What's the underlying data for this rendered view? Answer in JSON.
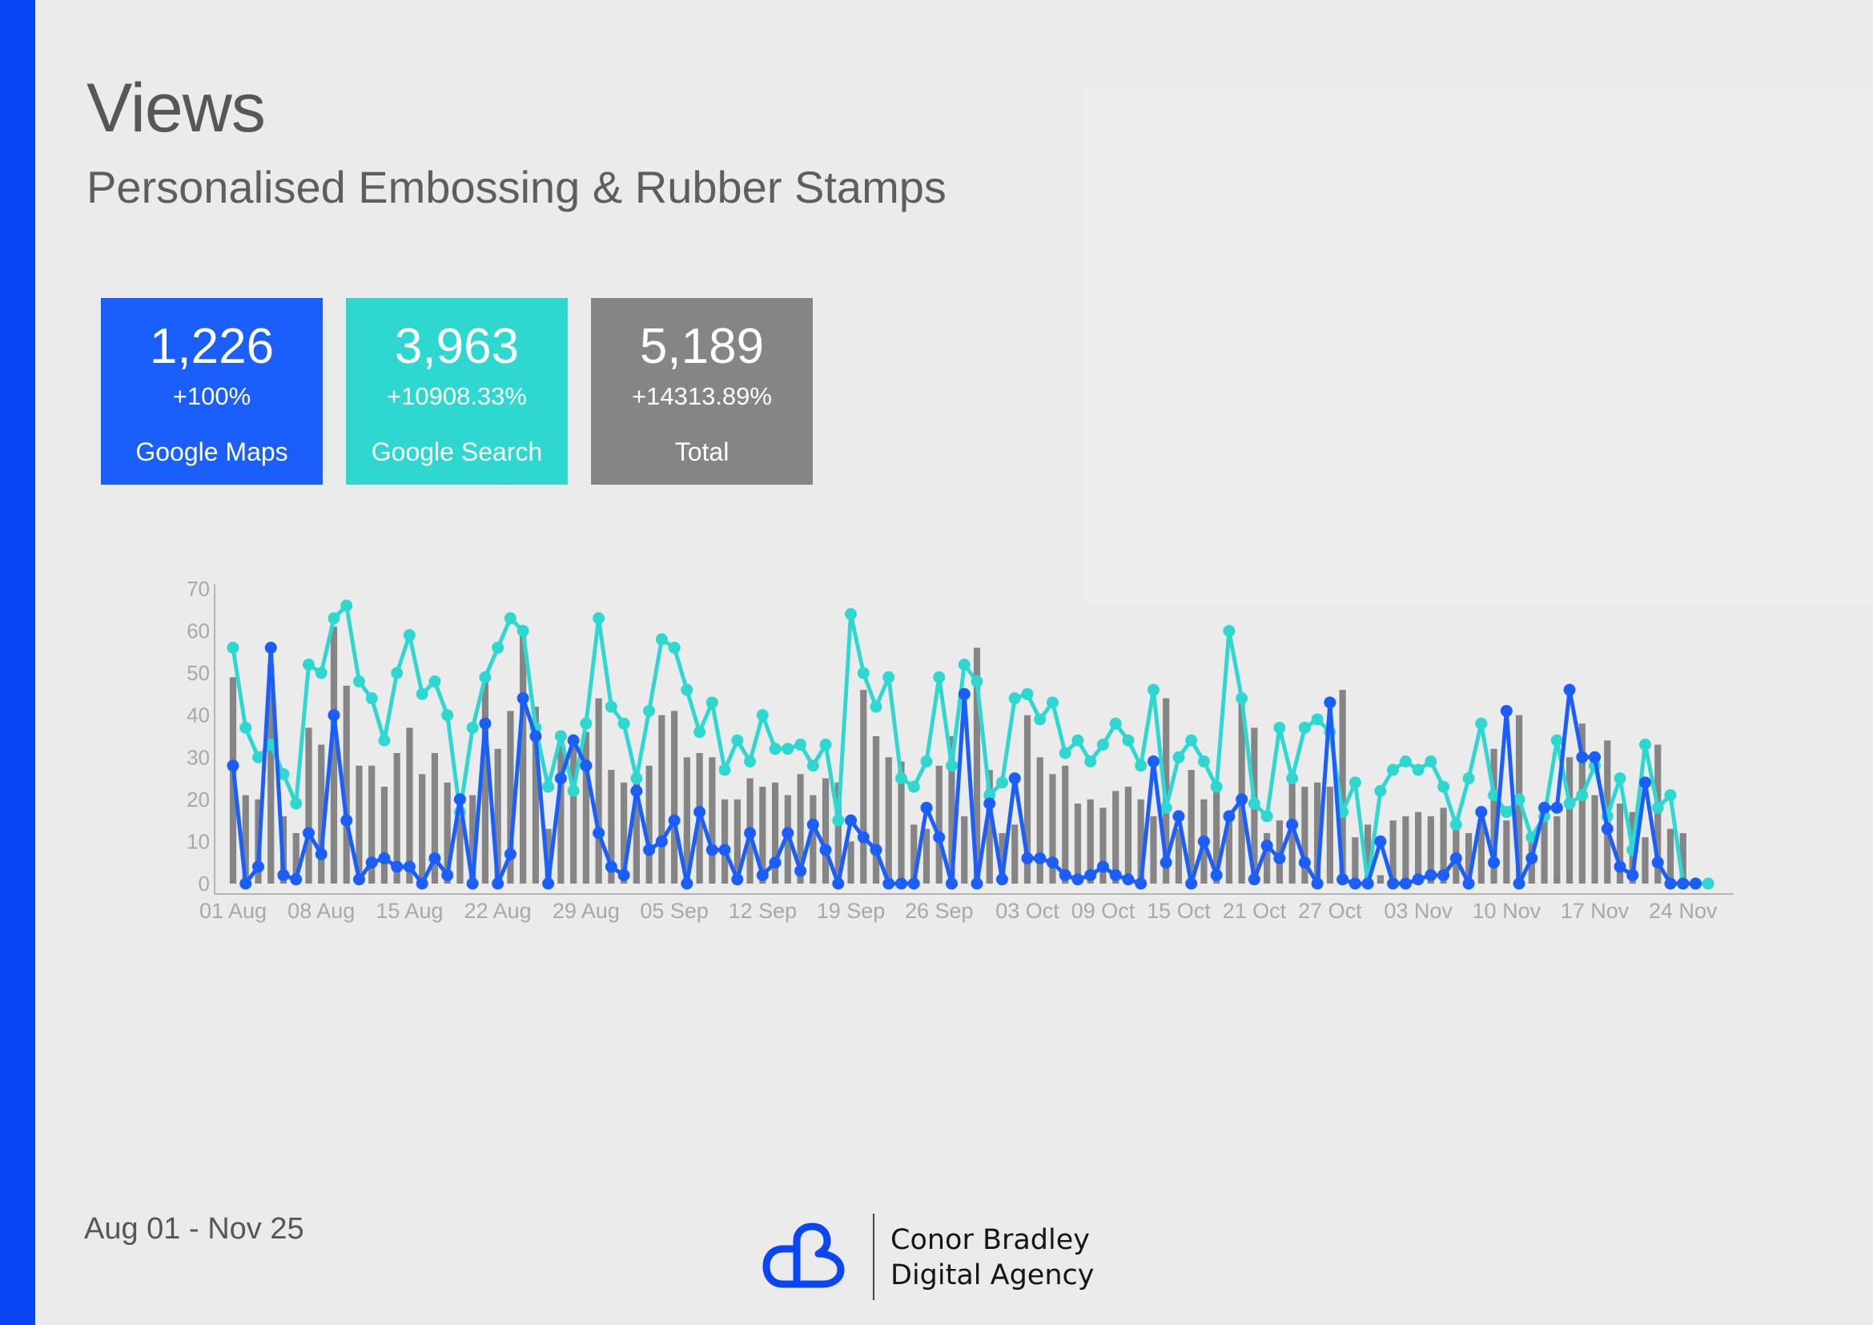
{
  "page": {
    "title": "Views",
    "subtitle": "Personalised Embossing & Rubber Stamps",
    "date_range": "Aug 01 - Nov 25"
  },
  "cards": [
    {
      "value": "1,226",
      "change": "+100%",
      "label": "Google Maps",
      "color": "#1a5efc"
    },
    {
      "value": "3,963",
      "change": "+10908.33%",
      "label": "Google Search",
      "color": "#2ed8d0"
    },
    {
      "value": "5,189",
      "change": "+14313.89%",
      "label": "Total",
      "color": "#858585"
    }
  ],
  "brand": {
    "line1": "Conor Bradley",
    "line2": "Digital Agency",
    "accent_color": "#0a46f5"
  },
  "chart_data": {
    "type": "bar",
    "ylim": [
      0,
      70
    ],
    "y_ticks": [
      "0",
      "10",
      "20",
      "30",
      "40",
      "50",
      "60",
      "70"
    ],
    "x_tick_labels": [
      "01 Aug",
      "08 Aug",
      "15 Aug",
      "22 Aug",
      "29 Aug",
      "05 Sep",
      "12 Sep",
      "19 Sep",
      "26 Sep",
      "03 Oct",
      "09 Oct",
      "15 Oct",
      "21 Oct",
      "27 Oct",
      "03 Nov",
      "10 Nov",
      "17 Nov",
      "24 Nov"
    ],
    "x_tick_index": [
      0,
      7,
      14,
      21,
      28,
      35,
      42,
      49,
      56,
      63,
      69,
      75,
      81,
      87,
      94,
      101,
      108,
      115
    ],
    "grid": false,
    "series": [
      {
        "kind": "bar",
        "color": "#858585",
        "values": [
          49,
          21,
          20,
          52,
          16,
          12,
          37,
          33,
          61,
          47,
          28,
          28,
          23,
          31,
          37,
          26,
          31,
          24,
          21,
          21,
          48,
          32,
          41,
          59,
          42,
          13,
          34,
          33,
          36,
          44,
          27,
          24,
          25,
          28,
          40,
          41,
          30,
          31,
          30,
          20,
          20,
          25,
          23,
          24,
          21,
          26,
          21,
          25,
          24,
          10,
          46,
          35,
          30,
          29,
          14,
          13,
          28,
          35,
          16,
          56,
          27,
          12,
          14,
          40,
          30,
          26,
          28,
          19,
          20,
          18,
          22,
          23,
          20,
          16,
          44,
          13,
          27,
          20,
          23,
          15,
          44,
          37,
          12,
          15,
          25,
          23,
          24,
          23,
          46,
          11,
          14,
          2,
          15,
          16,
          17,
          16,
          18,
          15,
          12,
          15,
          32,
          15,
          40,
          12,
          17,
          16,
          30,
          38,
          21,
          34,
          19,
          17,
          11,
          33,
          13,
          12,
          0,
          0,
          0
        ]
      },
      {
        "kind": "line",
        "color": "#2ed8d0",
        "values": [
          56,
          37,
          30,
          33,
          26,
          19,
          52,
          50,
          63,
          66,
          48,
          44,
          34,
          50,
          59,
          45,
          48,
          40,
          17,
          37,
          49,
          56,
          63,
          60,
          37,
          23,
          35,
          22,
          38,
          63,
          42,
          38,
          25,
          41,
          58,
          56,
          46,
          36,
          43,
          27,
          34,
          29,
          40,
          32,
          32,
          33,
          28,
          33,
          15,
          64,
          50,
          42,
          49,
          25,
          23,
          29,
          49,
          28,
          52,
          48,
          21,
          24,
          44,
          45,
          39,
          43,
          31,
          34,
          29,
          33,
          38,
          34,
          28,
          46,
          18,
          30,
          34,
          29,
          23,
          60,
          44,
          19,
          16,
          37,
          25,
          37,
          39,
          36,
          17,
          24,
          0,
          22,
          27,
          29,
          27,
          29,
          23,
          14,
          25,
          38,
          21,
          17,
          20,
          11,
          16,
          34,
          19,
          21,
          28,
          16,
          25,
          8,
          33,
          18,
          21,
          0,
          0,
          0
        ]
      },
      {
        "kind": "line",
        "color": "#1a5efc",
        "values": [
          28,
          0,
          4,
          56,
          2,
          1,
          12,
          7,
          40,
          15,
          1,
          5,
          6,
          4,
          4,
          0,
          6,
          2,
          20,
          0,
          38,
          0,
          7,
          44,
          35,
          0,
          25,
          34,
          28,
          12,
          4,
          2,
          22,
          8,
          10,
          15,
          0,
          17,
          8,
          8,
          1,
          12,
          2,
          5,
          12,
          3,
          14,
          8,
          0,
          15,
          11,
          8,
          0,
          0,
          0,
          18,
          11,
          0,
          45,
          0,
          19,
          1,
          25,
          6,
          6,
          5,
          2,
          1,
          2,
          4,
          2,
          1,
          0,
          29,
          5,
          16,
          0,
          10,
          2,
          16,
          20,
          1,
          9,
          6,
          14,
          5,
          0,
          43,
          1,
          0,
          0,
          10,
          0,
          0,
          1,
          2,
          2,
          6,
          0,
          17,
          5,
          41,
          0,
          6,
          18,
          18,
          46,
          30,
          30,
          13,
          4,
          2,
          24,
          5,
          0,
          0,
          0
        ]
      }
    ]
  }
}
